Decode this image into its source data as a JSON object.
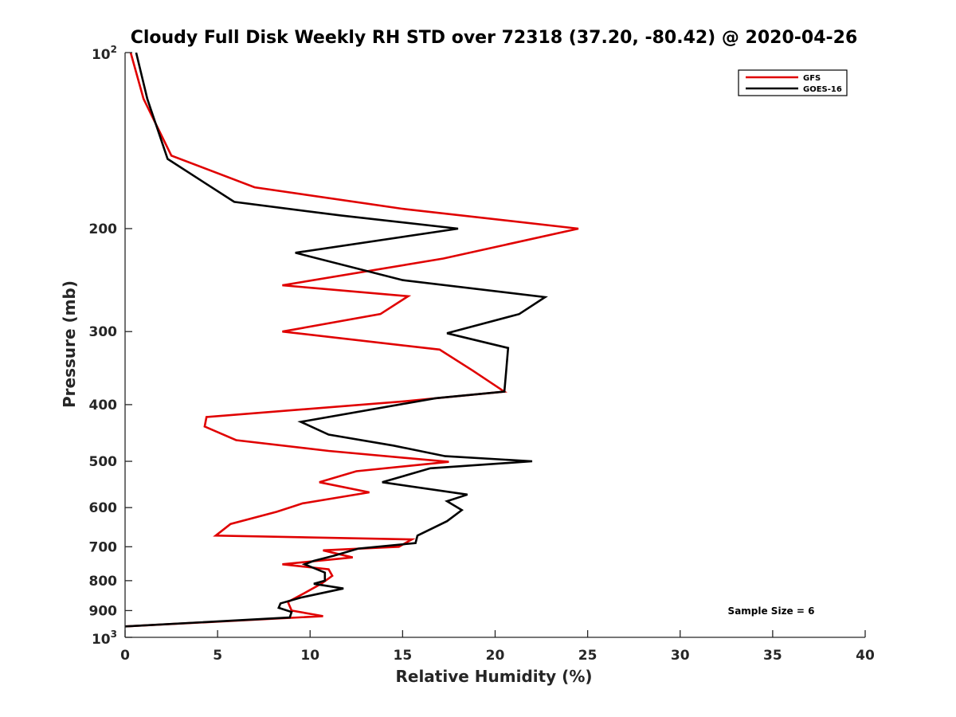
{
  "chart_data": {
    "type": "line",
    "title": "Cloudy Full Disk Weekly RH STD over 72318 (37.20, -80.42) @ 2020-04-26",
    "xlabel": "Relative Humidity (%)",
    "ylabel": "Pressure (mb)",
    "xlim": [
      0,
      40
    ],
    "ylim": [
      100,
      1000
    ],
    "yscale": "log",
    "y_reversed": true,
    "x_ticks": [
      0,
      5,
      10,
      15,
      20,
      25,
      30,
      35,
      40
    ],
    "x_tick_labels": [
      "0",
      "5",
      "10",
      "15",
      "20",
      "25",
      "30",
      "35",
      "40"
    ],
    "y_ticks": [
      200,
      300,
      400,
      500,
      600,
      700,
      800,
      900
    ],
    "y_tick_labels": [
      "200",
      "300",
      "400",
      "500",
      "600",
      "700",
      "800",
      "900"
    ],
    "y_end_ticks": [
      {
        "value": 100,
        "base": "10",
        "exp": "2"
      },
      {
        "value": 1000,
        "base": "10",
        "exp": "3"
      }
    ],
    "legend_position": "top-right",
    "annotation": "Sample Size = 6",
    "series": [
      {
        "name": "GFS",
        "color": "#e00000",
        "points": [
          [
            0.3,
            100
          ],
          [
            1.0,
            120
          ],
          [
            2.5,
            150
          ],
          [
            7.0,
            170
          ],
          [
            15.0,
            185
          ],
          [
            24.5,
            200
          ],
          [
            17.2,
            225
          ],
          [
            8.5,
            250
          ],
          [
            15.3,
            261
          ],
          [
            13.8,
            280
          ],
          [
            8.5,
            300
          ],
          [
            17.0,
            322
          ],
          [
            18.8,
            350
          ],
          [
            20.5,
            380
          ],
          [
            15.0,
            395
          ],
          [
            4.4,
            420
          ],
          [
            4.3,
            436
          ],
          [
            6.0,
            460
          ],
          [
            11.0,
            480
          ],
          [
            17.5,
            501
          ],
          [
            12.5,
            520
          ],
          [
            10.5,
            543
          ],
          [
            13.2,
            565
          ],
          [
            9.6,
            590
          ],
          [
            8.2,
            610
          ],
          [
            5.7,
            640
          ],
          [
            4.9,
            670
          ],
          [
            15.5,
            680
          ],
          [
            14.8,
            700
          ],
          [
            10.7,
            710
          ],
          [
            12.3,
            730
          ],
          [
            8.5,
            750
          ],
          [
            11.0,
            765
          ],
          [
            11.2,
            785
          ],
          [
            10.6,
            810
          ],
          [
            9.7,
            840
          ],
          [
            8.8,
            870
          ],
          [
            9.0,
            900
          ],
          [
            10.7,
            920
          ],
          [
            0.0,
            958
          ]
        ]
      },
      {
        "name": "GOES-16",
        "color": "#000000",
        "points": [
          [
            0.6,
            100
          ],
          [
            1.2,
            120
          ],
          [
            2.3,
            152
          ],
          [
            5.9,
            180
          ],
          [
            11.7,
            190
          ],
          [
            18.0,
            200
          ],
          [
            9.2,
            220
          ],
          [
            15.0,
            245
          ],
          [
            22.7,
            262
          ],
          [
            21.3,
            280
          ],
          [
            17.4,
            302
          ],
          [
            20.7,
            320
          ],
          [
            20.6,
            350
          ],
          [
            20.5,
            380
          ],
          [
            16.8,
            390
          ],
          [
            9.5,
            428
          ],
          [
            11.0,
            450
          ],
          [
            14.5,
            470
          ],
          [
            17.3,
            490
          ],
          [
            22.0,
            500
          ],
          [
            16.5,
            514
          ],
          [
            13.9,
            543
          ],
          [
            18.5,
            570
          ],
          [
            17.4,
            585
          ],
          [
            18.2,
            606
          ],
          [
            17.4,
            633
          ],
          [
            15.8,
            670
          ],
          [
            15.7,
            690
          ],
          [
            12.6,
            705
          ],
          [
            11.3,
            725
          ],
          [
            10.2,
            740
          ],
          [
            9.7,
            750
          ],
          [
            10.8,
            775
          ],
          [
            10.8,
            800
          ],
          [
            10.2,
            810
          ],
          [
            11.8,
            825
          ],
          [
            9.5,
            855
          ],
          [
            8.4,
            875
          ],
          [
            8.3,
            890
          ],
          [
            9.0,
            905
          ],
          [
            8.9,
            925
          ],
          [
            0.0,
            958
          ]
        ]
      }
    ]
  }
}
